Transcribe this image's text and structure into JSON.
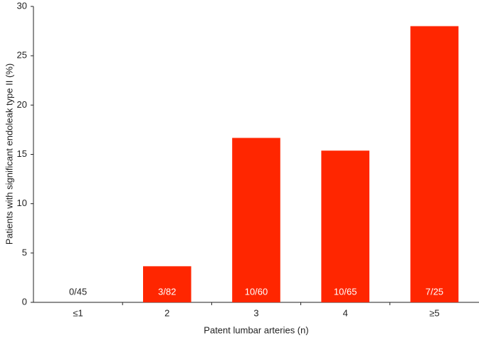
{
  "chart_data": {
    "type": "bar",
    "x_label": "Patent lumbar arteries (n)",
    "y_label": "Patients with significant endoleak type II (%)",
    "categories": [
      "≤1",
      "2",
      "3",
      "4",
      "≥5"
    ],
    "values": [
      0,
      3.66,
      16.67,
      15.38,
      28
    ],
    "value_labels": [
      "0/45",
      "3/82",
      "10/60",
      "10/65",
      "7/25"
    ],
    "color": "#ff2600",
    "ylim": [
      0,
      30
    ],
    "yticks": [
      0,
      5,
      10,
      15,
      20,
      25,
      30
    ],
    "grid": false
  }
}
